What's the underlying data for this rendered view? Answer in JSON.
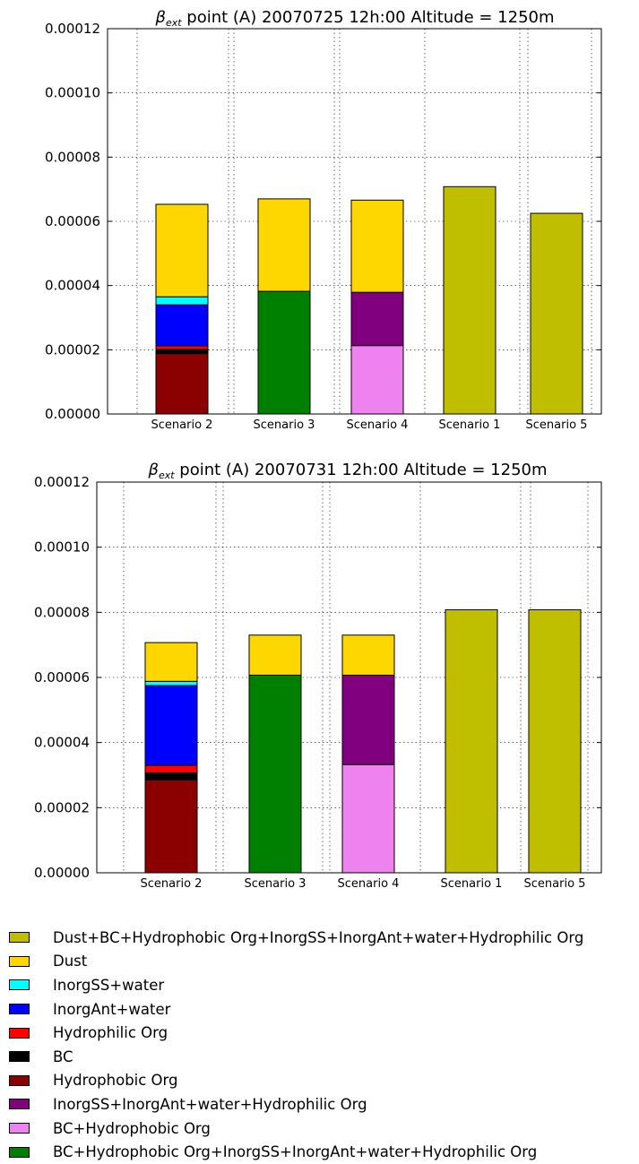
{
  "chart_data": [
    {
      "type": "bar",
      "stacked": true,
      "title_prefix": "β",
      "title_subscript": "ext",
      "title": "point (A) 20070725 12h:00 Altitude = 1250m",
      "ylim": [
        0,
        0.00012
      ],
      "yticks": [
        "0.00000",
        "0.00002",
        "0.00004",
        "0.00006",
        "0.00008",
        "0.00010",
        "0.00012"
      ],
      "grid": true,
      "bars": [
        {
          "label": "Scenario 2",
          "segments": [
            {
              "component": "Hydrophobic Org",
              "value": 1.88e-05
            },
            {
              "component": "BC",
              "value": 1.3e-06
            },
            {
              "component": "Hydrophilic Org",
              "value": 1.1e-06
            },
            {
              "component": "InorgAnt+water",
              "value": 1.28e-05
            },
            {
              "component": "InorgSS+water",
              "value": 2.5e-06
            },
            {
              "component": "Dust",
              "value": 2.88e-05
            }
          ]
        },
        {
          "label": "Scenario 3",
          "segments": [
            {
              "component": "BC+Hydrophobic Org+InorgSS+InorgAnt+water+Hydrophilic Org",
              "value": 3.82e-05
            },
            {
              "component": "Dust",
              "value": 2.88e-05
            }
          ]
        },
        {
          "label": "Scenario 4",
          "segments": [
            {
              "component": "BC+Hydrophobic Org",
              "value": 2.13e-05
            },
            {
              "component": "InorgSS+InorgAnt+water+Hydrophilic Org",
              "value": 1.66e-05
            },
            {
              "component": "Dust",
              "value": 2.87e-05
            }
          ]
        },
        {
          "label": "Scenario 1",
          "segments": [
            {
              "component": "Dust+BC+Hydrophobic Org+InorgSS+InorgAnt+water+Hydrophilic Org",
              "value": 7.08e-05
            }
          ]
        },
        {
          "label": "Scenario 5",
          "segments": [
            {
              "component": "Dust+BC+Hydrophobic Org+InorgSS+InorgAnt+water+Hydrophilic Org",
              "value": 6.25e-05
            }
          ]
        }
      ]
    },
    {
      "type": "bar",
      "stacked": true,
      "title_prefix": "β",
      "title_subscript": "ext",
      "title": "point (A) 20070731 12h:00 Altitude = 1250m",
      "ylim": [
        0,
        0.00012
      ],
      "yticks": [
        "0.00000",
        "0.00002",
        "0.00004",
        "0.00006",
        "0.00008",
        "0.00010",
        "0.00012"
      ],
      "grid": true,
      "bars": [
        {
          "label": "Scenario 2",
          "segments": [
            {
              "component": "Hydrophobic Org",
              "value": 2.85e-05
            },
            {
              "component": "BC",
              "value": 2.2e-06
            },
            {
              "component": "Hydrophilic Org",
              "value": 2.3e-06
            },
            {
              "component": "InorgAnt+water",
              "value": 2.45e-05
            },
            {
              "component": "InorgSS+water",
              "value": 1.3e-06
            },
            {
              "component": "Dust",
              "value": 1.19e-05
            }
          ]
        },
        {
          "label": "Scenario 3",
          "segments": [
            {
              "component": "BC+Hydrophobic Org+InorgSS+InorgAnt+water+Hydrophilic Org",
              "value": 6.07e-05
            },
            {
              "component": "Dust",
              "value": 1.23e-05
            }
          ]
        },
        {
          "label": "Scenario 4",
          "segments": [
            {
              "component": "BC+Hydrophobic Org",
              "value": 3.32e-05
            },
            {
              "component": "InorgSS+InorgAnt+water+Hydrophilic Org",
              "value": 2.75e-05
            },
            {
              "component": "Dust",
              "value": 1.23e-05
            }
          ]
        },
        {
          "label": "Scenario 1",
          "segments": [
            {
              "component": "Dust+BC+Hydrophobic Org+InorgSS+InorgAnt+water+Hydrophilic Org",
              "value": 8.08e-05
            }
          ]
        },
        {
          "label": "Scenario 5",
          "segments": [
            {
              "component": "Dust+BC+Hydrophobic Org+InorgSS+InorgAnt+water+Hydrophilic Org",
              "value": 8.08e-05
            }
          ]
        }
      ]
    }
  ],
  "legend": {
    "placement": "bottom",
    "items": [
      {
        "label": "Dust+BC+Hydrophobic Org+InorgSS+InorgAnt+water+Hydrophilic Org",
        "color": "#bfbf00"
      },
      {
        "label": "Dust",
        "color": "#ffd700"
      },
      {
        "label": "InorgSS+water",
        "color": "#00ffff"
      },
      {
        "label": "InorgAnt+water",
        "color": "#0000ff"
      },
      {
        "label": "Hydrophilic Org",
        "color": "#ff0000"
      },
      {
        "label": "BC",
        "color": "#000000"
      },
      {
        "label": "Hydrophobic Org",
        "color": "#8b0000"
      },
      {
        "label": "InorgSS+InorgAnt+water+Hydrophilic Org",
        "color": "#800080"
      },
      {
        "label": "BC+Hydrophobic Org",
        "color": "#ee82ee"
      },
      {
        "label": "BC+Hydrophobic Org+InorgSS+InorgAnt+water+Hydrophilic Org",
        "color": "#008000"
      }
    ]
  }
}
